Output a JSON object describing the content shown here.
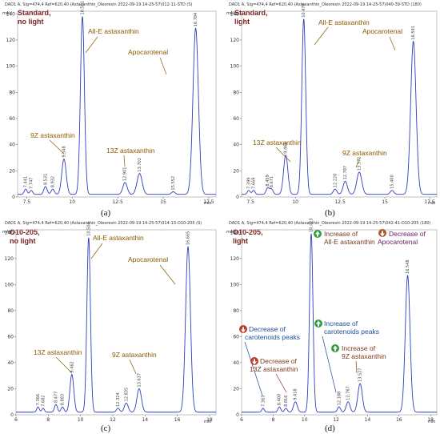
{
  "chart_data": [
    {
      "type": "line",
      "header": "DAD1 A, Sig=474,4 Ref=620,40 (Astaxanthin_Oleoresin 2022-09-19 14-25-57\\012-11-STD (S)",
      "title_lines": [
        "Standard,",
        "no light"
      ],
      "caption": "(a)",
      "ylabel": "mAU",
      "xlabel": "min",
      "xlim": [
        7.0,
        17.9
      ],
      "ylim": [
        0,
        142
      ],
      "yticks": [
        0,
        20,
        40,
        60,
        80,
        100,
        120,
        140
      ],
      "xticks": [
        7.5,
        10,
        12.5,
        15,
        17.5
      ],
      "xtick_labels": [
        "7.5",
        "10",
        "12.5",
        "15",
        "17.5"
      ],
      "baseline": 2,
      "peaks": [
        {
          "rt": 7.441,
          "h": 4,
          "w": 0.08,
          "label": "7.441"
        },
        {
          "rt": 7.747,
          "h": 3,
          "w": 0.08,
          "label": "7.747"
        },
        {
          "rt": 8.531,
          "h": 6,
          "w": 0.09,
          "label": "8.531"
        },
        {
          "rt": 8.932,
          "h": 4,
          "w": 0.09,
          "label": "8.932"
        },
        {
          "rt": 9.548,
          "h": 27,
          "w": 0.12,
          "label": "9.548"
        },
        {
          "rt": 10.561,
          "h": 136,
          "w": 0.11,
          "label": "10.561"
        },
        {
          "rt": 12.901,
          "h": 9,
          "w": 0.12,
          "label": "12.901"
        },
        {
          "rt": 13.702,
          "h": 16,
          "w": 0.14,
          "label": "13.702"
        },
        {
          "rt": 15.552,
          "h": 2,
          "w": 0.1,
          "label": "15.552"
        },
        {
          "rt": 16.784,
          "h": 127,
          "w": 0.15,
          "label": "16.784"
        }
      ],
      "annotations": [
        {
          "text": "All-E astaxanthin",
          "color": "#8a5a00"
        },
        {
          "text": "Apocarotenal",
          "color": "#8a5a00"
        },
        {
          "text": "9Z astaxanthin",
          "color": "#8a5a00"
        },
        {
          "text": "13Z astaxanthin",
          "color": "#8a5a00"
        }
      ]
    },
    {
      "type": "line",
      "header": "DAD1 A, Sig=474,4 Ref=620,40 (Astaxanthin_Oleoresin 2022-09-19 14-25-57\\040-39-STD (180)",
      "title_lines": [
        "Standard,",
        "light"
      ],
      "caption": "(b)",
      "ylabel": "mAU",
      "xlabel": "min",
      "xlim": [
        7.0,
        17.9
      ],
      "ylim": [
        0,
        142
      ],
      "yticks": [
        0,
        20,
        40,
        60,
        80,
        100,
        120,
        140
      ],
      "xticks": [
        7.5,
        10,
        12.5,
        15,
        17.5
      ],
      "xtick_labels": [
        "7.5",
        "10",
        "12.5",
        "15",
        "17.5"
      ],
      "baseline": 2,
      "peaks": [
        {
          "rt": 7.399,
          "h": 3,
          "w": 0.08,
          "label": "7.399"
        },
        {
          "rt": 7.669,
          "h": 3,
          "w": 0.08,
          "label": "7.669"
        },
        {
          "rt": 8.459,
          "h": 5,
          "w": 0.09,
          "label": "8.459"
        },
        {
          "rt": 8.671,
          "h": 4,
          "w": 0.09,
          "label": "8.671"
        },
        {
          "rt": 9.465,
          "h": 30,
          "w": 0.12,
          "label": "9.465"
        },
        {
          "rt": 10.47,
          "h": 134,
          "w": 0.11,
          "label": "10.470"
        },
        {
          "rt": 12.22,
          "h": 4,
          "w": 0.1,
          "label": "12.220"
        },
        {
          "rt": 12.787,
          "h": 10,
          "w": 0.12,
          "label": "12.787"
        },
        {
          "rt": 13.571,
          "h": 17,
          "w": 0.14,
          "label": "13.571"
        },
        {
          "rt": 15.4,
          "h": 3,
          "w": 0.1,
          "label": "15.400"
        },
        {
          "rt": 16.591,
          "h": 117,
          "w": 0.15,
          "label": "16.591"
        }
      ],
      "annotations": [
        {
          "text": "All-E astaxanthin",
          "color": "#8a5a00"
        },
        {
          "text": "Apocarotenal",
          "color": "#8a5a00"
        },
        {
          "text": "13Z astaxanthin",
          "color": "#8a5a00"
        },
        {
          "text": "9Z astaxanthin",
          "color": "#8a5a00"
        }
      ]
    },
    {
      "type": "line",
      "header": "DAD1 A, Sig=474,4 Ref=620,40 (Astaxanthin_Oleoresin 2022-09-19 14-25-57\\014-13-O10-205 (S)",
      "title_lines": [
        "O10-205,",
        "no light"
      ],
      "caption": "(c)",
      "ylabel": "mAU",
      "xlabel": "min",
      "xlim": [
        6.0,
        18.4
      ],
      "ylim": [
        0,
        142
      ],
      "yticks": [
        0,
        20,
        40,
        60,
        80,
        100,
        120,
        140
      ],
      "xticks": [
        6,
        8,
        10,
        12,
        14,
        16,
        18
      ],
      "xtick_labels": [
        "6",
        "8",
        "10",
        "12",
        "14",
        "16",
        "18"
      ],
      "baseline": 2,
      "peaks": [
        {
          "rt": 7.366,
          "h": 4,
          "w": 0.08,
          "label": "7.366"
        },
        {
          "rt": 7.682,
          "h": 3,
          "w": 0.08,
          "label": "7.682"
        },
        {
          "rt": 8.477,
          "h": 6,
          "w": 0.09,
          "label": "8.477"
        },
        {
          "rt": 8.883,
          "h": 4,
          "w": 0.09,
          "label": "8.883"
        },
        {
          "rt": 9.462,
          "h": 29,
          "w": 0.12,
          "label": "9.462"
        },
        {
          "rt": 10.504,
          "h": 134,
          "w": 0.11,
          "label": "10.504"
        },
        {
          "rt": 12.324,
          "h": 3,
          "w": 0.1,
          "label": "12.324"
        },
        {
          "rt": 12.835,
          "h": 7,
          "w": 0.12,
          "label": "12.835"
        },
        {
          "rt": 13.637,
          "h": 18,
          "w": 0.14,
          "label": "13.637"
        },
        {
          "rt": 16.665,
          "h": 127,
          "w": 0.15,
          "label": "16.665"
        }
      ],
      "annotations": [
        {
          "text": "All-E astaxanthin",
          "color": "#8a5a00"
        },
        {
          "text": "Apocarotenal",
          "color": "#8a5a00"
        },
        {
          "text": "13Z astaxanthin",
          "color": "#8a5a00"
        },
        {
          "text": "9Z astaxanthin",
          "color": "#8a5a00"
        }
      ]
    },
    {
      "type": "line",
      "header": "DAD1 A, Sig=474,4 Ref=620,40 (Astaxanthin_Oleoresin 2022-09-19 14-25-57\\042-41-O10-205 (180)",
      "title_lines": [
        "O10-205,",
        "light"
      ],
      "caption": "(d)",
      "ylabel": "mAU",
      "xlabel": "min",
      "xlim": [
        6.0,
        18.4
      ],
      "ylim": [
        0,
        142
      ],
      "yticks": [
        0,
        20,
        40,
        60,
        80,
        100,
        120,
        140
      ],
      "xticks": [
        6,
        8,
        10,
        12,
        14,
        16,
        18
      ],
      "xtick_labels": [
        "6",
        "8",
        "10",
        "12",
        "14",
        "16",
        "18"
      ],
      "baseline": 2,
      "peaks": [
        {
          "rt": 7.363,
          "h": 3,
          "w": 0.08,
          "label": "7.363"
        },
        {
          "rt": 8.4,
          "h": 4,
          "w": 0.09,
          "label": "8.400"
        },
        {
          "rt": 8.816,
          "h": 3,
          "w": 0.09,
          "label": "8.816"
        },
        {
          "rt": 9.418,
          "h": 8,
          "w": 0.12,
          "label": "9.418"
        },
        {
          "rt": 10.423,
          "h": 137,
          "w": 0.11,
          "label": "10.423"
        },
        {
          "rt": 12.188,
          "h": 4,
          "w": 0.1,
          "label": "12.188"
        },
        {
          "rt": 12.767,
          "h": 8,
          "w": 0.12,
          "label": "12.767"
        },
        {
          "rt": 13.527,
          "h": 22,
          "w": 0.14,
          "label": "13.527"
        },
        {
          "rt": 16.548,
          "h": 105,
          "w": 0.15,
          "label": "16.548"
        }
      ],
      "annotations": [
        {
          "text": "Increase of",
          "text2": "All-E astaxanthin",
          "icon": "up-arrow",
          "color": "#7a3a1a"
        },
        {
          "text": "Decrease of",
          "text2": "Apocarotenal",
          "icon": "down-arrow",
          "color": "#6a1b6a"
        },
        {
          "text": "Decrease of",
          "text2": "carotenoids peaks",
          "icon": "down-arrow",
          "color": "#1f4e9c"
        },
        {
          "text": "Increase of",
          "text2": "carotenoids peaks",
          "icon": "up-arrow",
          "color": "#1f4e9c"
        },
        {
          "text": "Decrease of",
          "text2": "13Z astaxanthin",
          "icon": "down-arrow",
          "color": "#7a3a1a"
        },
        {
          "text": "Increase of",
          "text2": "9Z astaxanthin",
          "icon": "up-arrow",
          "color": "#7a3a1a"
        }
      ]
    }
  ]
}
